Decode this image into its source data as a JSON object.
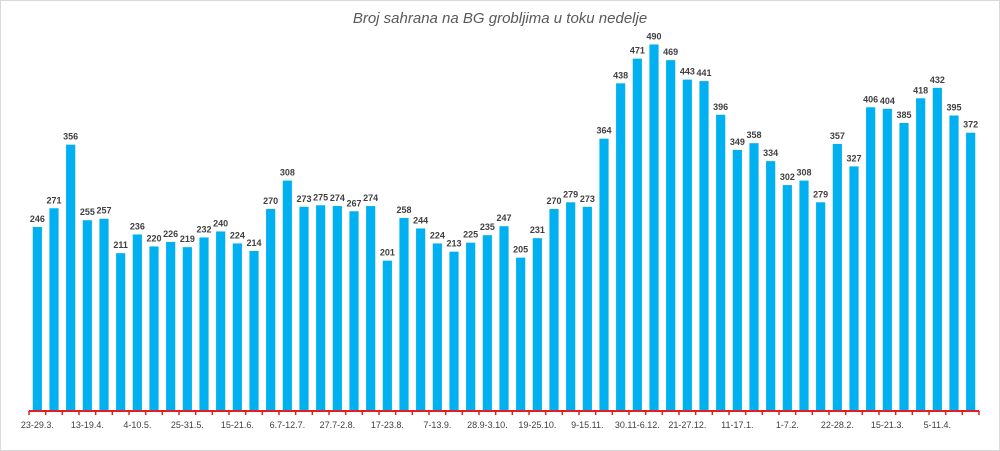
{
  "chart_data": {
    "type": "bar",
    "title": "Broj sahrana na BG grobljima u toku nedelje",
    "xlabel": "",
    "ylabel": "",
    "ylim": [
      0,
      520
    ],
    "bar_color": "#00b0f0",
    "axis_color": "#e02020",
    "values": [
      246,
      271,
      356,
      255,
      257,
      211,
      236,
      220,
      226,
      219,
      232,
      240,
      224,
      214,
      270,
      308,
      273,
      275,
      274,
      267,
      274,
      201,
      258,
      244,
      224,
      213,
      225,
      235,
      247,
      205,
      231,
      270,
      279,
      273,
      364,
      438,
      471,
      490,
      469,
      443,
      441,
      396,
      349,
      358,
      334,
      302,
      308,
      279,
      357,
      327,
      406,
      404,
      385,
      418,
      432,
      395,
      372
    ],
    "tick_labels": [
      {
        "index": 0,
        "label": "23-29.3."
      },
      {
        "index": 3,
        "label": "13-19.4."
      },
      {
        "index": 6,
        "label": "4-10.5."
      },
      {
        "index": 9,
        "label": "25-31.5."
      },
      {
        "index": 12,
        "label": "15-21.6."
      },
      {
        "index": 15,
        "label": "6.7-12.7."
      },
      {
        "index": 18,
        "label": "27.7-2.8."
      },
      {
        "index": 21,
        "label": "17-23.8."
      },
      {
        "index": 24,
        "label": "7-13.9."
      },
      {
        "index": 27,
        "label": "28.9-3.10."
      },
      {
        "index": 30,
        "label": "19-25.10."
      },
      {
        "index": 33,
        "label": "9-15.11."
      },
      {
        "index": 36,
        "label": "30.11-6.12."
      },
      {
        "index": 39,
        "label": "21-27.12."
      },
      {
        "index": 42,
        "label": "11-17.1."
      },
      {
        "index": 45,
        "label": "1-7.2."
      },
      {
        "index": 48,
        "label": "22-28.2."
      },
      {
        "index": 51,
        "label": "15-21.3."
      },
      {
        "index": 54,
        "label": "5-11.4."
      }
    ]
  }
}
